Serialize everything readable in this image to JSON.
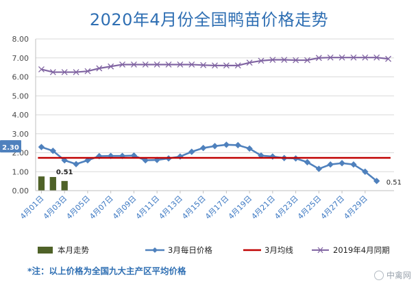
{
  "chart_data": {
    "type": "bar+line",
    "title": "2020年4月份全国鸭苗价格走势",
    "ylim": [
      0,
      8
    ],
    "yticks": [
      "0.00",
      "1.00",
      "2.00",
      "3.00",
      "4.00",
      "5.00",
      "6.00",
      "7.00",
      "8.00"
    ],
    "xtick_labels": [
      "4月01日",
      "4月03日",
      "4月05日",
      "4月07日",
      "4月09日",
      "4月11日",
      "4月13日",
      "4月15日",
      "4月17日",
      "4月19日",
      "4月21日",
      "4月23日",
      "4月25日",
      "4月27日",
      "4月29日"
    ],
    "bars": {
      "name": "本月走势",
      "color": "#4f6228",
      "values": [
        0.75,
        0.72,
        0.51
      ]
    },
    "series": [
      {
        "name": "3月每日价格",
        "color": "#4f81bd",
        "marker": "diamond",
        "values": [
          2.3,
          2.1,
          1.6,
          1.4,
          1.6,
          1.82,
          1.83,
          1.83,
          1.85,
          1.6,
          1.62,
          1.7,
          1.8,
          2.05,
          2.25,
          2.35,
          2.42,
          2.4,
          2.22,
          1.85,
          1.8,
          1.72,
          1.7,
          1.5,
          1.15,
          1.38,
          1.45,
          1.38,
          1.0,
          0.51
        ]
      },
      {
        "name": "3月均线",
        "color": "#c00000",
        "values": [
          1.73,
          1.73
        ]
      },
      {
        "name": "2019年4月同期",
        "color": "#8064a2",
        "marker": "x",
        "values": [
          6.4,
          6.25,
          6.25,
          6.25,
          6.3,
          6.45,
          6.55,
          6.65,
          6.65,
          6.65,
          6.65,
          6.65,
          6.65,
          6.65,
          6.62,
          6.6,
          6.6,
          6.6,
          6.75,
          6.85,
          6.9,
          6.9,
          6.88,
          6.88,
          7.0,
          7.02,
          7.02,
          7.02,
          7.02,
          7.02,
          6.95
        ]
      }
    ],
    "data_labels": {
      "march_start": "2.30",
      "march_end": "0.51",
      "bar_last": "0.51"
    }
  },
  "note": "*注：以上价格为全国九大主产区平均价格",
  "watermark": "中禽网"
}
